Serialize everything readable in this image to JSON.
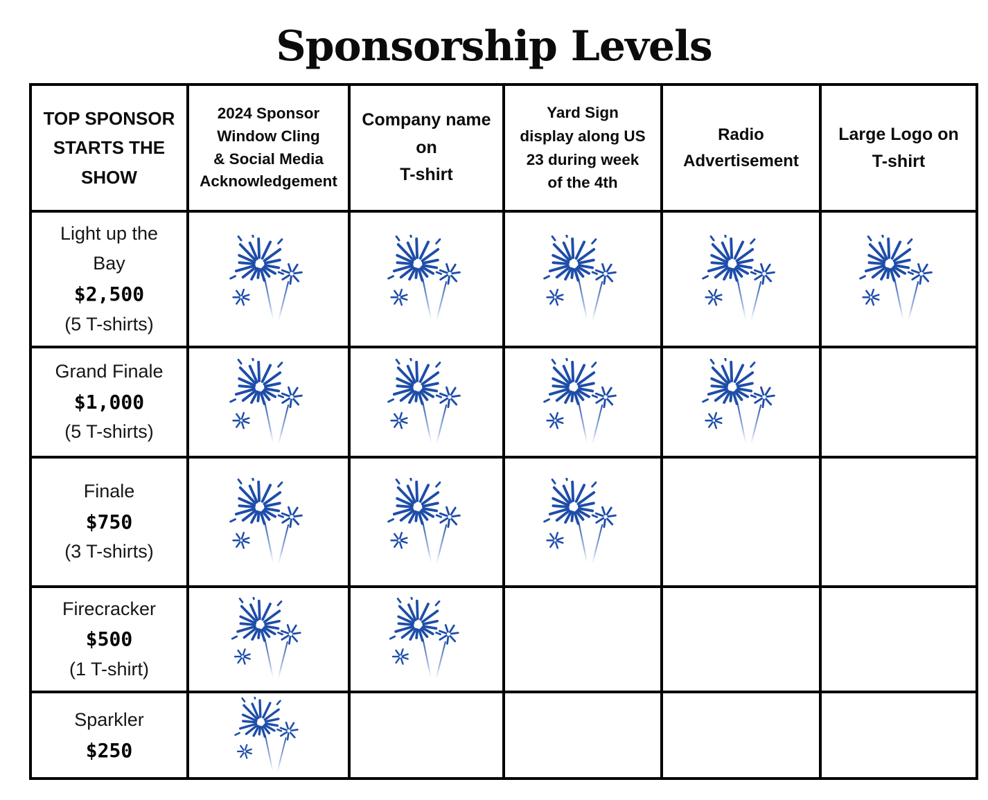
{
  "page": {
    "title": "Sponsorship Levels",
    "background": "#ffffff"
  },
  "colors": {
    "firework_blue": "#1e4da9",
    "table_border": "#000000",
    "text": "#000000"
  },
  "table": {
    "columns": [
      {
        "id": "top-sponsor",
        "label": "TOP SPONSOR STARTS THE SHOW",
        "lines": [
          "TOP SPONSOR",
          "STARTS THE",
          "SHOW"
        ]
      },
      {
        "id": "window-cling",
        "label": "2024 Sponsor Window Cling & Social Media Acknowledgement",
        "lines": [
          "2024 Sponsor",
          "Window Cling",
          "& Social Media",
          "Acknowledgement"
        ]
      },
      {
        "id": "company-name-tshirt",
        "label": "Company name on T-shirt",
        "lines": [
          "Company name",
          "on",
          "T-shirt"
        ]
      },
      {
        "id": "yard-sign",
        "label": "Yard Sign display along US 23 during week of the 4th",
        "lines": [
          "Yard Sign",
          "display along US",
          "23 during week",
          "of the 4th"
        ]
      },
      {
        "id": "radio-ad",
        "label": "Radio Advertisement",
        "lines": [
          "Radio",
          "Advertisement"
        ]
      },
      {
        "id": "large-logo-tshirt",
        "label": "Large Logo on T-shirt",
        "lines": [
          "Large Logo on",
          "T-shirt"
        ]
      }
    ],
    "icon": {
      "name": "fireworks-icon",
      "color": "#1e4da9"
    },
    "rows": [
      {
        "id": "light-up-the-bay",
        "name_lines": [
          "Light up the",
          "Bay"
        ],
        "price": "$2,500",
        "tshirts": "(5 T-shirts)",
        "benefits": [
          true,
          true,
          true,
          true,
          true
        ]
      },
      {
        "id": "grand-finale",
        "name_lines": [
          "Grand Finale"
        ],
        "price": "$1,000",
        "tshirts": "(5 T-shirts)",
        "benefits": [
          true,
          true,
          true,
          true,
          false
        ]
      },
      {
        "id": "finale",
        "name_lines": [
          "Finale"
        ],
        "price": "$750",
        "tshirts": "(3 T-shirts)",
        "benefits": [
          true,
          true,
          true,
          false,
          false
        ]
      },
      {
        "id": "firecracker",
        "name_lines": [
          "Firecracker"
        ],
        "price": "$500",
        "tshirts": "(1 T-shirt)",
        "benefits": [
          true,
          true,
          false,
          false,
          false
        ]
      },
      {
        "id": "sparkler",
        "name_lines": [
          "Sparkler"
        ],
        "price": "$250",
        "tshirts": "",
        "benefits": [
          true,
          false,
          false,
          false,
          false
        ]
      }
    ]
  }
}
